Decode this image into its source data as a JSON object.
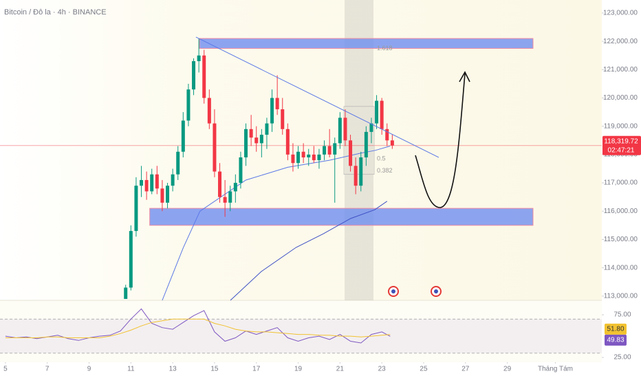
{
  "chart_data": [
    {
      "type": "candlestick",
      "title": "Bitcoin / Đô la · 4h · BINANCE",
      "x": [
        10.75,
        11,
        11.25,
        11.5,
        11.75,
        12,
        12.25,
        12.5,
        12.75,
        13,
        13.25,
        13.5,
        13.75,
        14,
        14.25,
        14.5,
        14.75,
        15,
        15.25,
        15.5,
        15.75,
        16,
        16.25,
        16.5,
        16.75,
        17,
        17.25,
        17.5,
        17.75,
        18,
        18.25,
        18.5,
        18.75,
        19,
        19.25,
        19.5,
        19.75,
        20,
        20.25,
        20.5,
        20.75,
        21,
        21.25,
        21.5,
        21.75,
        22,
        22.25,
        22.5,
        22.75,
        23,
        23.25,
        23.5
      ],
      "open": [
        112900,
        113300,
        115300,
        116900,
        117100,
        116700,
        117300,
        116800,
        116300,
        116900,
        117300,
        118100,
        119200,
        120300,
        121300,
        121500,
        120000,
        119100,
        117400,
        116500,
        116300,
        116700,
        117000,
        117900,
        118900,
        118600,
        118400,
        118700,
        119100,
        120000,
        119600,
        118900,
        118000,
        117700,
        118100,
        117900,
        118000,
        117800,
        118000,
        118300,
        118000,
        118400,
        119300,
        118500,
        117600,
        116900,
        117900,
        118800,
        119100,
        119900,
        118900,
        118500
      ],
      "high": [
        113400,
        115500,
        117200,
        117600,
        117400,
        117500,
        117600,
        117100,
        117000,
        117500,
        118300,
        119500,
        120500,
        121400,
        122100,
        121700,
        120300,
        119600,
        117700,
        117100,
        116900,
        117300,
        118100,
        119100,
        119400,
        119000,
        118900,
        119300,
        120300,
        120800,
        120000,
        119100,
        118400,
        118300,
        118400,
        118200,
        118300,
        118200,
        118500,
        118900,
        118600,
        119500,
        119600,
        118700,
        117900,
        118100,
        119000,
        119300,
        120100,
        120000,
        119100,
        118700
      ],
      "low": [
        112900,
        113200,
        115100,
        116500,
        116400,
        116600,
        116600,
        116000,
        116100,
        116700,
        117100,
        117900,
        119000,
        120100,
        120900,
        119800,
        118900,
        117200,
        116300,
        115800,
        116000,
        116300,
        116800,
        117600,
        118300,
        118100,
        117900,
        118200,
        118800,
        119400,
        118700,
        117800,
        117400,
        117500,
        117700,
        117600,
        117700,
        117500,
        117800,
        117900,
        116300,
        118200,
        118300,
        117400,
        116600,
        116700,
        117600,
        118400,
        118900,
        118700,
        118300,
        118200
      ],
      "close": [
        113300,
        115300,
        116900,
        117100,
        116700,
        117300,
        116800,
        116300,
        116900,
        117300,
        118100,
        119200,
        120300,
        121300,
        121500,
        120000,
        119100,
        117400,
        116500,
        116300,
        116700,
        117000,
        117900,
        118900,
        118600,
        118400,
        118700,
        119100,
        120000,
        119600,
        118900,
        118000,
        117700,
        118100,
        117900,
        118000,
        117800,
        118000,
        118300,
        118000,
        118400,
        119300,
        118500,
        117600,
        116900,
        117900,
        118800,
        119100,
        119900,
        118900,
        118500,
        118320
      ],
      "up_color": "#089981",
      "down_color": "#f23645",
      "xlim": [
        4.74,
        33.52
      ],
      "ylim": [
        112850,
        123460
      ],
      "yticks": [
        {
          "value": 113000,
          "label": "113,000.00"
        },
        {
          "value": 114000,
          "label": "114,000.00"
        },
        {
          "value": 115000,
          "label": "115,000.00"
        },
        {
          "value": 116000,
          "label": "116,000.00"
        },
        {
          "value": 117000,
          "label": "117,000.00"
        },
        {
          "value": 118000,
          "label": "118,000.00"
        },
        {
          "value": 119000,
          "label": "119,000.00"
        },
        {
          "value": 120000,
          "label": "120,000.00"
        },
        {
          "value": 121000,
          "label": "121,000.00"
        },
        {
          "value": 122000,
          "label": "122,000.00"
        },
        {
          "value": 123000,
          "label": "123,000.00"
        }
      ],
      "lines": [
        {
          "color": "#5b78e6",
          "x": [
            12.5,
            13.5,
            14.3,
            15.3,
            16.5,
            18.5,
            20.5,
            22,
            22.7,
            23.4
          ],
          "values": [
            112850,
            114700,
            116000,
            116500,
            117100,
            117550,
            117800,
            118050,
            118150,
            118300
          ]
        },
        {
          "color": "#3f51c5",
          "x": [
            15.76,
            17.24,
            18.9,
            20.2,
            21.5,
            22.66,
            23.25
          ],
          "values": [
            112850,
            113870,
            114720,
            115200,
            115740,
            116050,
            116350
          ]
        }
      ],
      "zones": [
        {
          "color": "#6f8ef0",
          "from": 14.28,
          "to": 30.23,
          "top": 122100,
          "bottom": 121750
        },
        {
          "color": "#6f8ef0",
          "from": 11.9,
          "to": 30.23,
          "top": 116100,
          "bottom": 115500
        }
      ],
      "trendline": {
        "color": "#5b78e6",
        "x": [
          14.11,
          25.72
        ],
        "values": [
          122150,
          117900
        ]
      },
      "highlight": {
        "from": 21.22,
        "to": 22.6
      },
      "fib_labels": [
        {
          "value": 121740,
          "label": "1.618"
        },
        {
          "value": 117850,
          "label": "0.5"
        },
        {
          "value": 117420,
          "label": "0.382"
        }
      ],
      "last_price": {
        "value": 118319.72,
        "label": "118,319.72",
        "countdown": "02:47:21",
        "color": "#f23645"
      }
    },
    {
      "type": "line",
      "x": [
        5,
        5.5,
        6,
        6.5,
        7,
        7.5,
        8,
        8.5,
        9,
        9.5,
        10,
        10.5,
        11,
        11.5,
        12,
        12.5,
        13,
        13.5,
        14,
        14.5,
        15,
        15.5,
        16,
        16.5,
        17,
        17.5,
        18,
        18.5,
        19,
        19.5,
        20,
        20.5,
        21,
        21.5,
        22,
        22.5,
        23,
        23.4
      ],
      "series": [
        {
          "color": "#7e57c2",
          "values": [
            50,
            48,
            49,
            47,
            49,
            51,
            47,
            45,
            48,
            50,
            51,
            56,
            70,
            82,
            65,
            60,
            58,
            66,
            74,
            80,
            55,
            44,
            48,
            56,
            52,
            56,
            60,
            48,
            44,
            48,
            50,
            46,
            52,
            44,
            42,
            52,
            55,
            49.83
          ],
          "last_label": "49.83"
        },
        {
          "color": "#f2c230",
          "values": [
            48,
            48,
            48,
            48,
            49,
            49,
            48,
            48,
            48,
            48,
            50,
            53,
            57,
            62,
            66,
            68,
            70,
            70,
            70,
            70,
            65,
            62,
            58,
            56,
            55,
            55,
            54,
            53,
            52,
            52,
            51,
            51,
            50,
            50,
            49,
            50,
            51,
            51.8
          ],
          "last_label": "51.80"
        }
      ],
      "bands": [
        30,
        70
      ],
      "xlim": [
        4.74,
        33.52
      ],
      "ylim": [
        21,
        92
      ],
      "yticks": [
        {
          "value": 75,
          "label": "75.00"
        },
        {
          "value": 25,
          "label": "25.00"
        }
      ],
      "xticks": [
        5,
        7,
        9,
        11,
        13,
        15,
        17,
        19,
        21,
        23,
        25,
        27,
        29,
        {
          "value": 31.3,
          "label": "Tháng Tám"
        }
      ]
    }
  ]
}
